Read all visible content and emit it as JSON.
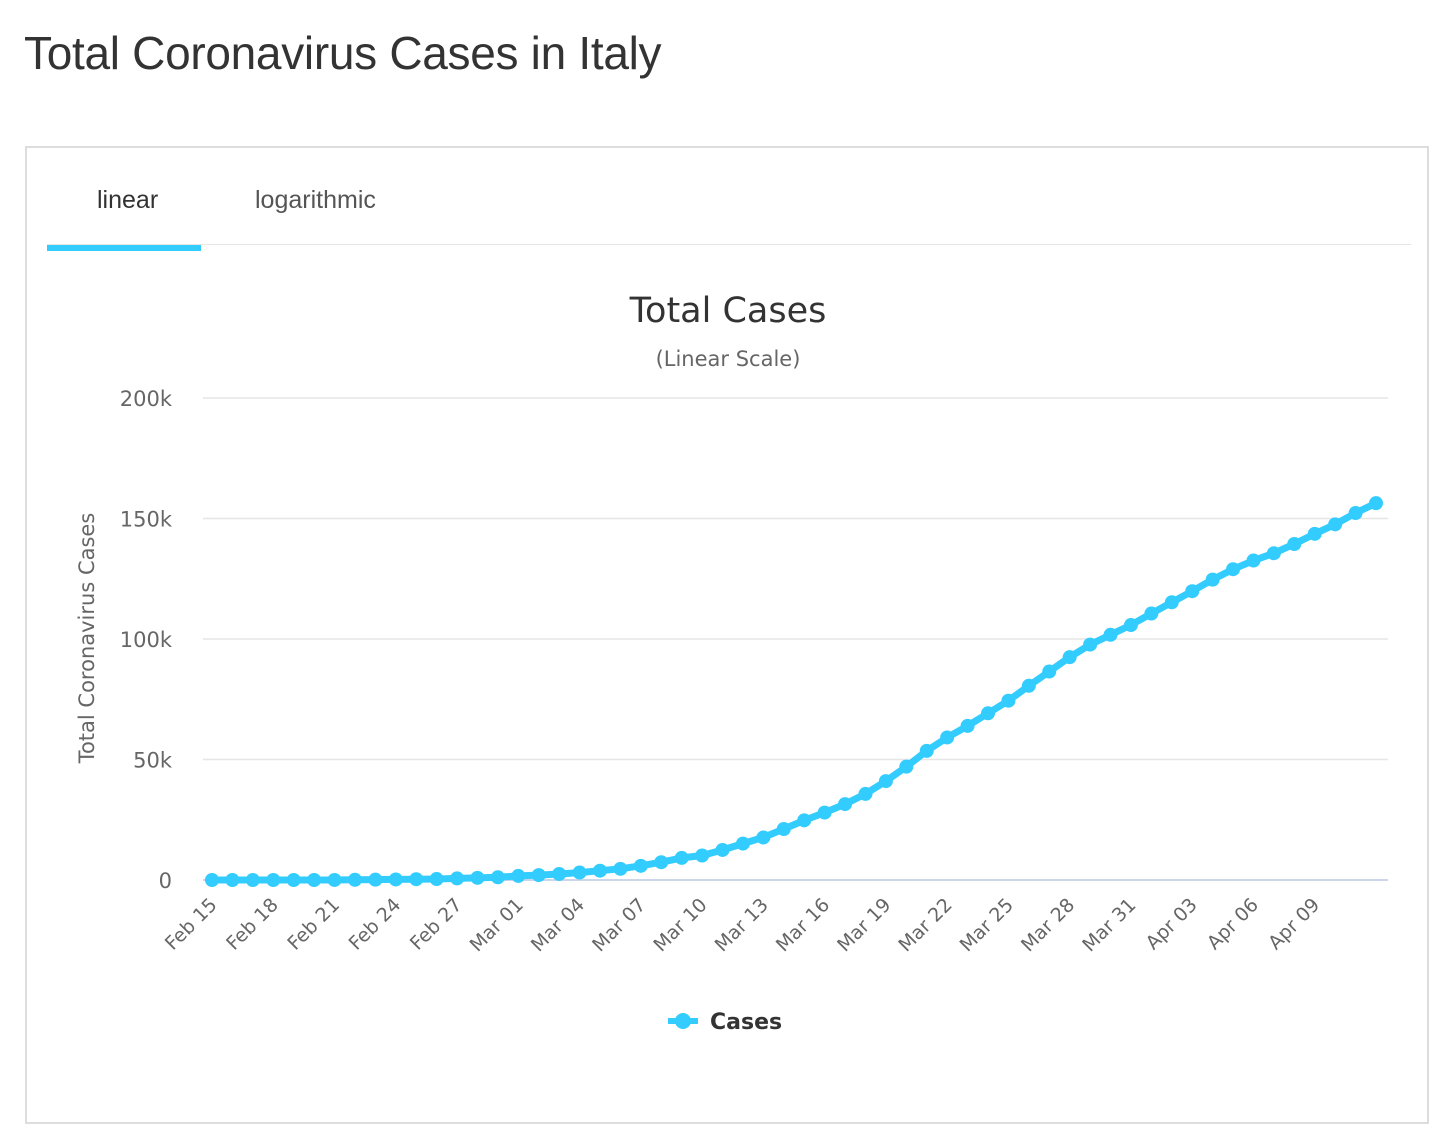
{
  "page": {
    "title": "Total Coronavirus Cases in Italy"
  },
  "tabs": [
    {
      "label": "linear",
      "active": true
    },
    {
      "label": "logarithmic",
      "active": false
    }
  ],
  "colors": {
    "series": "#33ccff",
    "active_tab": "#33ccff",
    "grid": "#e6e6e6"
  },
  "chart_data": {
    "type": "line",
    "title": "Total Cases",
    "subtitle": "(Linear Scale)",
    "ylabel": "Total Coronavirus Cases",
    "xlabel": "",
    "ylim": [
      0,
      200000
    ],
    "yticks": [
      0,
      50000,
      100000,
      150000,
      200000
    ],
    "ytick_labels": [
      "0",
      "50k",
      "100k",
      "150k",
      "200k"
    ],
    "xtick_labels": [
      "Feb 15",
      "Feb 18",
      "Feb 21",
      "Feb 24",
      "Feb 27",
      "Mar 01",
      "Mar 04",
      "Mar 07",
      "Mar 10",
      "Mar 13",
      "Mar 16",
      "Mar 19",
      "Mar 22",
      "Mar 25",
      "Mar 28",
      "Mar 31",
      "Apr 03",
      "Apr 06",
      "Apr 09"
    ],
    "grid": true,
    "legend": "bottom-center",
    "series": [
      {
        "name": "Cases",
        "x": [
          "Feb 15",
          "Feb 16",
          "Feb 17",
          "Feb 18",
          "Feb 19",
          "Feb 20",
          "Feb 21",
          "Feb 22",
          "Feb 23",
          "Feb 24",
          "Feb 25",
          "Feb 26",
          "Feb 27",
          "Feb 28",
          "Feb 29",
          "Mar 01",
          "Mar 02",
          "Mar 03",
          "Mar 04",
          "Mar 05",
          "Mar 06",
          "Mar 07",
          "Mar 08",
          "Mar 09",
          "Mar 10",
          "Mar 11",
          "Mar 12",
          "Mar 13",
          "Mar 14",
          "Mar 15",
          "Mar 16",
          "Mar 17",
          "Mar 18",
          "Mar 19",
          "Mar 20",
          "Mar 21",
          "Mar 22",
          "Mar 23",
          "Mar 24",
          "Mar 25",
          "Mar 26",
          "Mar 27",
          "Mar 28",
          "Mar 29",
          "Mar 30",
          "Mar 31",
          "Apr 01",
          "Apr 02",
          "Apr 03",
          "Apr 04",
          "Apr 05",
          "Apr 06",
          "Apr 07",
          "Apr 08",
          "Apr 09",
          "Apr 10",
          "Apr 11",
          "Apr 12"
        ],
        "values": [
          3,
          3,
          3,
          3,
          3,
          3,
          20,
          79,
          150,
          229,
          322,
          400,
          650,
          888,
          1128,
          1694,
          2036,
          2502,
          3089,
          3858,
          4636,
          5883,
          7375,
          9172,
          10149,
          12462,
          15113,
          17660,
          21157,
          24747,
          27980,
          31506,
          35713,
          41035,
          47021,
          53578,
          59138,
          63927,
          69176,
          74386,
          80589,
          86498,
          92472,
          97689,
          101739,
          105792,
          110574,
          115242,
          119827,
          124632,
          128948,
          132547,
          135586,
          139422,
          143626,
          147577,
          152271,
          156363
        ]
      }
    ]
  }
}
